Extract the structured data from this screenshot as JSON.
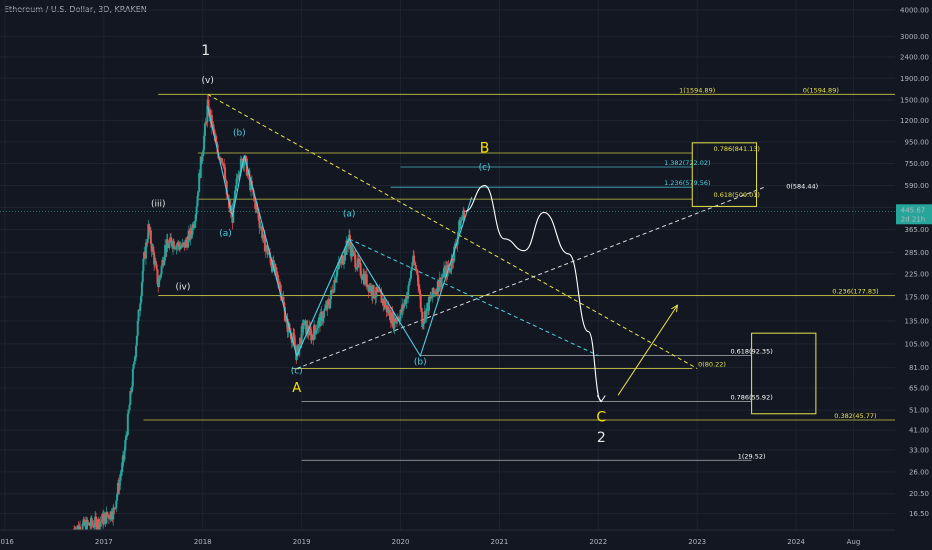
{
  "header": {
    "title": "Ethereum / U.S. Dollar, 3D, KRAKEN"
  },
  "chart_data": {
    "type": "candlestick",
    "scale": "log",
    "x_range": [
      2015.95,
      2025.0
    ],
    "y_range": [
      13.8,
      4000
    ],
    "y_ticks": [
      "4000.00",
      "3000.00",
      "2400.00",
      "1900.00",
      "1500.00",
      "1200.00",
      "950.00",
      "750.00",
      "590.00",
      "465.00",
      "365.00",
      "285.00",
      "225.00",
      "175.00",
      "135.00",
      "105.00",
      "81.00",
      "65.00",
      "51.00",
      "41.00",
      "33.00",
      "26.00",
      "20.50",
      "16.50"
    ],
    "x_ticks": [
      {
        "label": "2016",
        "x": 2016.0
      },
      {
        "label": "2017",
        "x": 2017.0
      },
      {
        "label": "2018",
        "x": 2018.0
      },
      {
        "label": "2019",
        "x": 2019.0
      },
      {
        "label": "2020",
        "x": 2020.0
      },
      {
        "label": "2021",
        "x": 2021.0
      },
      {
        "label": "2022",
        "x": 2022.0
      },
      {
        "label": "2023",
        "x": 2023.0
      },
      {
        "label": "2024",
        "x": 2024.0
      },
      {
        "label": "Aug",
        "x": 2024.58
      }
    ],
    "last_price": {
      "value": 445.67,
      "label": "445.67",
      "countdown": "2d 21h",
      "color": "#26a69a"
    },
    "price_path": [
      {
        "x": 2016.7,
        "y": 14
      },
      {
        "x": 2016.95,
        "y": 15
      },
      {
        "x": 2017.1,
        "y": 17
      },
      {
        "x": 2017.2,
        "y": 30
      },
      {
        "x": 2017.3,
        "y": 80
      },
      {
        "x": 2017.4,
        "y": 250
      },
      {
        "x": 2017.45,
        "y": 370
      },
      {
        "x": 2017.5,
        "y": 280
      },
      {
        "x": 2017.55,
        "y": 200
      },
      {
        "x": 2017.62,
        "y": 300
      },
      {
        "x": 2017.7,
        "y": 320
      },
      {
        "x": 2017.8,
        "y": 300
      },
      {
        "x": 2017.88,
        "y": 350
      },
      {
        "x": 2017.93,
        "y": 450
      },
      {
        "x": 2017.98,
        "y": 750
      },
      {
        "x": 2018.03,
        "y": 1150
      },
      {
        "x": 2018.05,
        "y": 1400
      },
      {
        "x": 2018.1,
        "y": 1100
      },
      {
        "x": 2018.15,
        "y": 850
      },
      {
        "x": 2018.2,
        "y": 800
      },
      {
        "x": 2018.25,
        "y": 500
      },
      {
        "x": 2018.3,
        "y": 420
      },
      {
        "x": 2018.36,
        "y": 700
      },
      {
        "x": 2018.42,
        "y": 800
      },
      {
        "x": 2018.48,
        "y": 600
      },
      {
        "x": 2018.55,
        "y": 450
      },
      {
        "x": 2018.62,
        "y": 320
      },
      {
        "x": 2018.7,
        "y": 250
      },
      {
        "x": 2018.78,
        "y": 200
      },
      {
        "x": 2018.85,
        "y": 130
      },
      {
        "x": 2018.92,
        "y": 110
      },
      {
        "x": 2018.95,
        "y": 92
      },
      {
        "x": 2019.02,
        "y": 130
      },
      {
        "x": 2019.1,
        "y": 115
      },
      {
        "x": 2019.2,
        "y": 140
      },
      {
        "x": 2019.28,
        "y": 165
      },
      {
        "x": 2019.35,
        "y": 230
      },
      {
        "x": 2019.42,
        "y": 270
      },
      {
        "x": 2019.48,
        "y": 330
      },
      {
        "x": 2019.5,
        "y": 290
      },
      {
        "x": 2019.58,
        "y": 240
      },
      {
        "x": 2019.65,
        "y": 210
      },
      {
        "x": 2019.72,
        "y": 185
      },
      {
        "x": 2019.8,
        "y": 175
      },
      {
        "x": 2019.86,
        "y": 155
      },
      {
        "x": 2019.93,
        "y": 135
      },
      {
        "x": 2020.0,
        "y": 145
      },
      {
        "x": 2020.08,
        "y": 190
      },
      {
        "x": 2020.12,
        "y": 260
      },
      {
        "x": 2020.17,
        "y": 230
      },
      {
        "x": 2020.22,
        "y": 135
      },
      {
        "x": 2020.3,
        "y": 170
      },
      {
        "x": 2020.38,
        "y": 200
      },
      {
        "x": 2020.45,
        "y": 230
      },
      {
        "x": 2020.5,
        "y": 240
      },
      {
        "x": 2020.55,
        "y": 300
      },
      {
        "x": 2020.6,
        "y": 390
      },
      {
        "x": 2020.65,
        "y": 445
      }
    ],
    "wave_labels": [
      {
        "text": "1",
        "x": 2018.03,
        "y": 2450,
        "color": "#e6e6e6",
        "size": 14,
        "weight": "normal"
      },
      {
        "text": "(v)",
        "x": 2018.05,
        "y": 1800,
        "color": "#e6e6e6",
        "size": 9,
        "weight": "normal"
      },
      {
        "text": "(b)",
        "x": 2018.37,
        "y": 1020,
        "color": "#4dd0e1",
        "size": 9,
        "weight": "normal"
      },
      {
        "text": "(iii)",
        "x": 2017.55,
        "y": 470,
        "color": "#e6e6e6",
        "size": 9,
        "weight": "normal"
      },
      {
        "text": "(a)",
        "x": 2018.23,
        "y": 340,
        "color": "#4dd0e1",
        "size": 9,
        "weight": "normal"
      },
      {
        "text": "(iv)",
        "x": 2017.8,
        "y": 190,
        "color": "#e6e6e6",
        "size": 9,
        "weight": "normal"
      },
      {
        "text": "(a)",
        "x": 2019.48,
        "y": 420,
        "color": "#4dd0e1",
        "size": 9,
        "weight": "normal"
      },
      {
        "text": "(c)",
        "x": 2018.95,
        "y": 76,
        "color": "#4dd0e1",
        "size": 9,
        "weight": "normal"
      },
      {
        "text": "A",
        "x": 2018.95,
        "y": 62,
        "color": "#f5e000",
        "size": 13,
        "weight": "normal"
      },
      {
        "text": "(b)",
        "x": 2020.2,
        "y": 84,
        "color": "#4dd0e1",
        "size": 9,
        "weight": "normal"
      },
      {
        "text": "B",
        "x": 2020.85,
        "y": 845,
        "color": "#f5e000",
        "size": 14,
        "weight": "normal"
      },
      {
        "text": "(c)",
        "x": 2020.85,
        "y": 700,
        "color": "#4dd0e1",
        "size": 9,
        "weight": "normal"
      },
      {
        "text": "C",
        "x": 2022.03,
        "y": 45,
        "color": "#f5e000",
        "size": 14,
        "weight": "normal"
      },
      {
        "text": "2",
        "x": 2022.03,
        "y": 36,
        "color": "#e6e6e6",
        "size": 14,
        "weight": "normal"
      }
    ],
    "levels": [
      {
        "y": 1594.89,
        "x1": 2017.55,
        "x2": 2025.0,
        "color": "#e8e34a",
        "label": "1(1594.89)",
        "lx": 2023.0
      },
      {
        "y": 1594.89,
        "x1": 2023.95,
        "x2": 2025.0,
        "color": "#e8e34a",
        "label": "0(1594.89)",
        "lx": 2024.25,
        "nolin": true
      },
      {
        "y": 841.13,
        "x1": 2017.95,
        "x2": 2022.95,
        "color": "#e8e34a",
        "label": "0.786(841.13)",
        "lx": 2023.4
      },
      {
        "y": 722.02,
        "x1": 2020.0,
        "x2": 2022.95,
        "color": "#4dd0e1",
        "label": "1.382(722.02)",
        "lx": 2022.9
      },
      {
        "y": 579.56,
        "x1": 2019.9,
        "x2": 2022.95,
        "color": "#4dd0e1",
        "label": "1.236(579.56)",
        "lx": 2022.9
      },
      {
        "y": 509.01,
        "x1": 2017.95,
        "x2": 2022.95,
        "color": "#e8e34a",
        "label": "0.618(509.01)",
        "lx": 2023.4
      },
      {
        "y": 177.83,
        "x1": 2017.55,
        "x2": 2025.0,
        "color": "#e8e34a",
        "label": "0.236(177.83)",
        "lx": 2024.6
      },
      {
        "y": 92.35,
        "x1": 2020.2,
        "x2": 2023.55,
        "color": "#c9c9c9",
        "label": "0.618(92.35)",
        "lx": 2023.55
      },
      {
        "y": 80.22,
        "x1": 2018.9,
        "x2": 2022.95,
        "color": "#e8e34a",
        "label": "0(80.22)",
        "lx": 2023.15
      },
      {
        "y": 55.92,
        "x1": 2019.0,
        "x2": 2023.55,
        "color": "#c9c9c9",
        "label": "0.786(55.92)",
        "lx": 2023.55
      },
      {
        "y": 45.77,
        "x1": 2017.4,
        "x2": 2025.0,
        "color": "#e8e34a",
        "label": "0.382(45.77)",
        "lx": 2024.6
      },
      {
        "y": 29.52,
        "x1": 2019.0,
        "x2": 2023.55,
        "color": "#c9c9c9",
        "label": "1(29.52)",
        "lx": 2023.55
      }
    ],
    "diagonals": [
      {
        "x1": 2018.05,
        "y1": 1594.89,
        "x2": 2023.0,
        "y2": 80.22,
        "color": "#e8e34a",
        "dash": true
      },
      {
        "x1": 2018.95,
        "y1": 80.22,
        "x2": 2023.7,
        "y2": 584.44,
        "color": "#d9d9d9",
        "dash": true,
        "label": "0(584.44)",
        "lx": 2023.9
      },
      {
        "x1": 2019.48,
        "y1": 330,
        "x2": 2022.0,
        "y2": 92.35,
        "color": "#4dd0e1",
        "dash": true
      }
    ],
    "wave_lines": [
      {
        "points": [
          [
            2018.05,
            1400
          ],
          [
            2018.3,
            420
          ],
          [
            2018.42,
            820
          ],
          [
            2018.95,
            92
          ]
        ],
        "color": "#4dd0e1"
      },
      {
        "points": [
          [
            2018.95,
            92
          ],
          [
            2019.48,
            330
          ],
          [
            2020.2,
            92
          ],
          [
            2020.72,
            520
          ]
        ],
        "color": "#4dd0e1"
      }
    ],
    "projection": {
      "points": [
        [
          2020.65,
          445
        ],
        [
          2020.85,
          590
        ],
        [
          2021.05,
          330
        ],
        [
          2021.25,
          290
        ],
        [
          2021.45,
          440
        ],
        [
          2021.7,
          280
        ],
        [
          2021.9,
          120
        ],
        [
          2022.03,
          56
        ]
      ],
      "color": "#ffffff"
    },
    "arrow_up": {
      "x1": 2022.2,
      "y1": 60,
      "x2": 2022.8,
      "y2": 160,
      "color": "#e8e34a"
    },
    "arrow_down_tip": {
      "x": 2022.03,
      "y": 56
    },
    "boxes": [
      {
        "x1": 2022.95,
        "x2": 2023.6,
        "y1": 470,
        "y2": 940,
        "color": "#e8e34a"
      },
      {
        "x1": 2023.55,
        "x2": 2024.2,
        "y1": 49,
        "y2": 118,
        "color": "#e8e34a"
      }
    ]
  }
}
